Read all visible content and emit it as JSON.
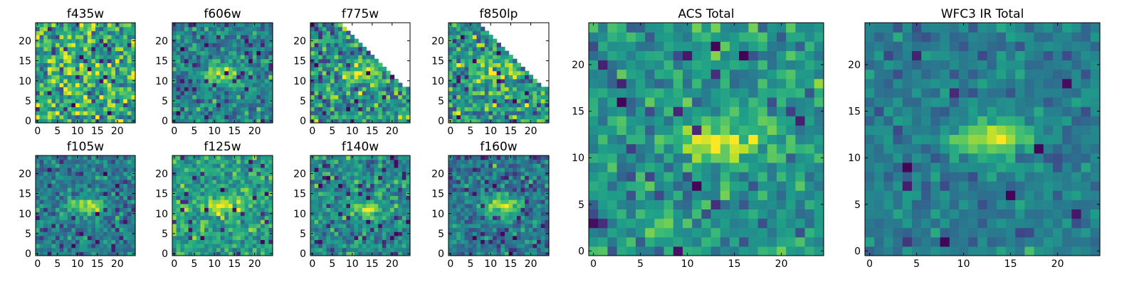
{
  "colormap": "viridis",
  "colors": {
    "low": "#440154",
    "mid": "#21918c",
    "high": "#fde725",
    "axis": "#000000",
    "background": "#ffffff"
  },
  "chart_data": [
    {
      "type": "heatmap",
      "title": "f435w",
      "xlim": [
        0,
        24
      ],
      "ylim": [
        0,
        24
      ],
      "xticks": [
        0,
        5,
        10,
        15,
        20
      ],
      "yticks": [
        0,
        5,
        10,
        15,
        20
      ],
      "source_center": [
        12,
        12
      ],
      "source_peak": 0.15,
      "noise_mean": 0.62,
      "noise_sd": 0.2,
      "dark_pixel_fraction": 0.03,
      "blank_region": "none",
      "seed": 11
    },
    {
      "type": "heatmap",
      "title": "f606w",
      "xlim": [
        0,
        24
      ],
      "ylim": [
        0,
        24
      ],
      "xticks": [
        0,
        5,
        10,
        15,
        20
      ],
      "yticks": [
        0,
        5,
        10,
        15,
        20
      ],
      "source_center": [
        12,
        12
      ],
      "source_peak": 0.45,
      "noise_mean": 0.45,
      "noise_sd": 0.13,
      "dark_pixel_fraction": 0.05,
      "blank_region": "none",
      "seed": 23
    },
    {
      "type": "heatmap",
      "title": "f775w",
      "xlim": [
        0,
        24
      ],
      "ylim": [
        0,
        24
      ],
      "xticks": [
        0,
        5,
        10,
        15,
        20
      ],
      "yticks": [
        0,
        5,
        10,
        15,
        20
      ],
      "source_center": [
        12,
        12
      ],
      "source_peak": 0.4,
      "noise_mean": 0.5,
      "noise_sd": 0.18,
      "dark_pixel_fraction": 0.05,
      "blank_region": "upper-right triangle",
      "seed": 37
    },
    {
      "type": "heatmap",
      "title": "f850lp",
      "xlim": [
        0,
        24
      ],
      "ylim": [
        0,
        24
      ],
      "xticks": [
        0,
        5,
        10,
        15,
        20
      ],
      "yticks": [
        0,
        5,
        10,
        15,
        20
      ],
      "source_center": [
        11,
        13
      ],
      "source_peak": 0.35,
      "noise_mean": 0.55,
      "noise_sd": 0.18,
      "dark_pixel_fraction": 0.04,
      "blank_region": "upper-right triangle",
      "seed": 41
    },
    {
      "type": "heatmap",
      "title": "f105w",
      "xlim": [
        0,
        24
      ],
      "ylim": [
        0,
        24
      ],
      "xticks": [
        0,
        5,
        10,
        15,
        20
      ],
      "yticks": [
        0,
        5,
        10,
        15,
        20
      ],
      "source_center": [
        13,
        12
      ],
      "source_peak": 0.5,
      "noise_mean": 0.42,
      "noise_sd": 0.12,
      "dark_pixel_fraction": 0.04,
      "blank_region": "none",
      "seed": 53
    },
    {
      "type": "heatmap",
      "title": "f125w",
      "xlim": [
        0,
        24
      ],
      "ylim": [
        0,
        24
      ],
      "xticks": [
        0,
        5,
        10,
        15,
        20
      ],
      "yticks": [
        0,
        5,
        10,
        15,
        20
      ],
      "source_center": [
        12,
        12
      ],
      "source_peak": 0.35,
      "noise_mean": 0.55,
      "noise_sd": 0.12,
      "dark_pixel_fraction": 0.03,
      "blank_region": "none",
      "seed": 67
    },
    {
      "type": "heatmap",
      "title": "f140w",
      "xlim": [
        0,
        24
      ],
      "ylim": [
        0,
        24
      ],
      "xticks": [
        0,
        5,
        10,
        15,
        20
      ],
      "yticks": [
        0,
        5,
        10,
        15,
        20
      ],
      "source_center": [
        13,
        11
      ],
      "source_peak": 0.4,
      "noise_mean": 0.48,
      "noise_sd": 0.13,
      "dark_pixel_fraction": 0.04,
      "blank_region": "none",
      "seed": 71
    },
    {
      "type": "heatmap",
      "title": "f160w",
      "xlim": [
        0,
        24
      ],
      "ylim": [
        0,
        24
      ],
      "xticks": [
        0,
        5,
        10,
        15,
        20
      ],
      "yticks": [
        0,
        5,
        10,
        15,
        20
      ],
      "source_center": [
        13,
        12
      ],
      "source_peak": 0.5,
      "noise_mean": 0.4,
      "noise_sd": 0.12,
      "dark_pixel_fraction": 0.04,
      "blank_region": "none",
      "seed": 83
    },
    {
      "type": "heatmap",
      "title": "ACS Total",
      "xlim": [
        0,
        24
      ],
      "ylim": [
        0,
        24
      ],
      "xticks": [
        0,
        5,
        10,
        15,
        20
      ],
      "yticks": [
        0,
        5,
        10,
        15,
        20
      ],
      "source_center": [
        14,
        12
      ],
      "source_peak": 0.45,
      "noise_mean": 0.52,
      "noise_sd": 0.13,
      "dark_pixel_fraction": 0.03,
      "blank_region": "none",
      "seed": 97
    },
    {
      "type": "heatmap",
      "title": "WFC3 IR Total",
      "xlim": [
        0,
        24
      ],
      "ylim": [
        0,
        24
      ],
      "xticks": [
        0,
        5,
        10,
        15,
        20
      ],
      "yticks": [
        0,
        5,
        10,
        15,
        20
      ],
      "source_center": [
        13,
        12
      ],
      "source_peak": 0.45,
      "noise_mean": 0.42,
      "noise_sd": 0.08,
      "dark_pixel_fraction": 0.02,
      "blank_region": "none",
      "seed": 101
    }
  ]
}
